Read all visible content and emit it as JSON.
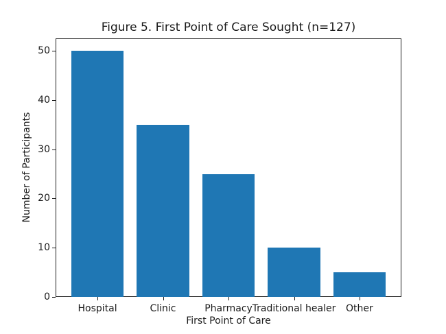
{
  "chart_data": {
    "type": "bar",
    "title": "Figure 5. First Point of Care Sought (n=127)",
    "categories": [
      "Hospital",
      "Clinic",
      "Pharmacy",
      "Traditional healer",
      "Other"
    ],
    "values": [
      50,
      35,
      25,
      10,
      5
    ],
    "xlabel": "First Point of Care",
    "ylabel": "Number of Participants",
    "ylim": [
      0,
      52.5
    ],
    "yticks": [
      0,
      10,
      20,
      30,
      40,
      50
    ],
    "bar_width_fraction": 0.8,
    "x_margin_fraction": 0.05,
    "grid": "off",
    "legend": "none",
    "colors": {
      "bar": "#1f77b4",
      "text": "#1a1a1a",
      "spine": "#1a1a1a",
      "background": "#ffffff"
    }
  }
}
